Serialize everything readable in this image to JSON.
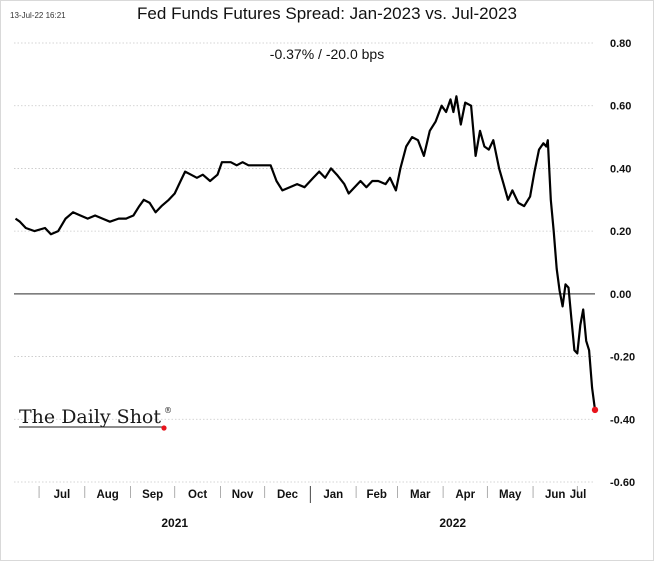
{
  "timestamp": "13-Jul-22 16:21",
  "title": "Fed Funds Futures Spread: Jan-2023 vs. Jul-2023",
  "subtitle": "-0.37%  /  -20.0 bps",
  "logo": {
    "text": "The Daily Shot",
    "mark": "®"
  },
  "colors": {
    "line": "#000000",
    "last_point": "#e8141c",
    "grid": "#c8c8c8",
    "zero_line": "#555555"
  },
  "chart_data": {
    "type": "line",
    "title": "Fed Funds Futures Spread: Jan-2023 vs. Jul-2023",
    "annotation": "-0.37%  /  -20.0 bps",
    "xlabel": "",
    "ylabel": "",
    "ylim": [
      -0.6,
      0.8
    ],
    "yticks": [
      "0.80",
      "0.60",
      "0.40",
      "0.20",
      "0.00",
      "-0.20",
      "-0.40",
      "-0.60"
    ],
    "y_axis_side": "right",
    "grid": "horizontal dotted",
    "x_range": [
      "2021-06-14",
      "2022-07-13"
    ],
    "x_month_labels": [
      "Jul",
      "Aug",
      "Sep",
      "Oct",
      "Nov",
      "Dec",
      "Jan",
      "Feb",
      "Mar",
      "Apr",
      "May",
      "Jun",
      "Jul"
    ],
    "x_year_labels": [
      "2021",
      "2022"
    ],
    "series": [
      {
        "values": [
          [
            "2021-06-15",
            0.24
          ],
          [
            "2021-06-18",
            0.23
          ],
          [
            "2021-06-22",
            0.21
          ],
          [
            "2021-06-28",
            0.2
          ],
          [
            "2021-07-05",
            0.21
          ],
          [
            "2021-07-09",
            0.19
          ],
          [
            "2021-07-14",
            0.2
          ],
          [
            "2021-07-19",
            0.24
          ],
          [
            "2021-07-24",
            0.26
          ],
          [
            "2021-07-29",
            0.25
          ],
          [
            "2021-08-03",
            0.24
          ],
          [
            "2021-08-08",
            0.25
          ],
          [
            "2021-08-13",
            0.24
          ],
          [
            "2021-08-18",
            0.23
          ],
          [
            "2021-08-24",
            0.24
          ],
          [
            "2021-08-29",
            0.24
          ],
          [
            "2021-09-03",
            0.25
          ],
          [
            "2021-09-07",
            0.28
          ],
          [
            "2021-09-10",
            0.3
          ],
          [
            "2021-09-14",
            0.29
          ],
          [
            "2021-09-18",
            0.26
          ],
          [
            "2021-09-22",
            0.28
          ],
          [
            "2021-09-27",
            0.3
          ],
          [
            "2021-10-01",
            0.32
          ],
          [
            "2021-10-05",
            0.36
          ],
          [
            "2021-10-08",
            0.39
          ],
          [
            "2021-10-12",
            0.38
          ],
          [
            "2021-10-16",
            0.37
          ],
          [
            "2021-10-20",
            0.38
          ],
          [
            "2021-10-25",
            0.36
          ],
          [
            "2021-10-30",
            0.38
          ],
          [
            "2021-11-02",
            0.42
          ],
          [
            "2021-11-08",
            0.42
          ],
          [
            "2021-11-12",
            0.41
          ],
          [
            "2021-11-16",
            0.42
          ],
          [
            "2021-11-20",
            0.41
          ],
          [
            "2021-11-26",
            0.41
          ],
          [
            "2021-12-01",
            0.41
          ],
          [
            "2021-12-05",
            0.41
          ],
          [
            "2021-12-09",
            0.36
          ],
          [
            "2021-12-13",
            0.33
          ],
          [
            "2021-12-18",
            0.34
          ],
          [
            "2021-12-23",
            0.35
          ],
          [
            "2021-12-28",
            0.34
          ],
          [
            "2022-01-03",
            0.37
          ],
          [
            "2022-01-07",
            0.39
          ],
          [
            "2022-01-11",
            0.37
          ],
          [
            "2022-01-15",
            0.4
          ],
          [
            "2022-01-19",
            0.38
          ],
          [
            "2022-01-24",
            0.35
          ],
          [
            "2022-01-27",
            0.32
          ],
          [
            "2022-01-31",
            0.34
          ],
          [
            "2022-02-04",
            0.36
          ],
          [
            "2022-02-08",
            0.34
          ],
          [
            "2022-02-12",
            0.36
          ],
          [
            "2022-02-16",
            0.36
          ],
          [
            "2022-02-21",
            0.35
          ],
          [
            "2022-02-24",
            0.37
          ],
          [
            "2022-02-28",
            0.33
          ],
          [
            "2022-03-03",
            0.4
          ],
          [
            "2022-03-07",
            0.47
          ],
          [
            "2022-03-11",
            0.5
          ],
          [
            "2022-03-15",
            0.49
          ],
          [
            "2022-03-19",
            0.44
          ],
          [
            "2022-03-23",
            0.52
          ],
          [
            "2022-03-27",
            0.55
          ],
          [
            "2022-03-31",
            0.6
          ],
          [
            "2022-04-03",
            0.58
          ],
          [
            "2022-04-06",
            0.62
          ],
          [
            "2022-04-08",
            0.58
          ],
          [
            "2022-04-10",
            0.63
          ],
          [
            "2022-04-13",
            0.54
          ],
          [
            "2022-04-16",
            0.61
          ],
          [
            "2022-04-20",
            0.6
          ],
          [
            "2022-04-23",
            0.44
          ],
          [
            "2022-04-26",
            0.52
          ],
          [
            "2022-04-29",
            0.47
          ],
          [
            "2022-05-02",
            0.46
          ],
          [
            "2022-05-05",
            0.49
          ],
          [
            "2022-05-09",
            0.4
          ],
          [
            "2022-05-12",
            0.35
          ],
          [
            "2022-05-15",
            0.3
          ],
          [
            "2022-05-18",
            0.33
          ],
          [
            "2022-05-22",
            0.29
          ],
          [
            "2022-05-26",
            0.28
          ],
          [
            "2022-05-30",
            0.31
          ],
          [
            "2022-06-02",
            0.39
          ],
          [
            "2022-06-05",
            0.46
          ],
          [
            "2022-06-08",
            0.48
          ],
          [
            "2022-06-10",
            0.47
          ],
          [
            "2022-06-11",
            0.49
          ],
          [
            "2022-06-13",
            0.3
          ],
          [
            "2022-06-15",
            0.2
          ],
          [
            "2022-06-17",
            0.08
          ],
          [
            "2022-06-19",
            0.01
          ],
          [
            "2022-06-21",
            -0.04
          ],
          [
            "2022-06-23",
            0.03
          ],
          [
            "2022-06-25",
            0.02
          ],
          [
            "2022-06-27",
            -0.08
          ],
          [
            "2022-06-29",
            -0.18
          ],
          [
            "2022-07-01",
            -0.19
          ],
          [
            "2022-07-03",
            -0.1
          ],
          [
            "2022-07-05",
            -0.05
          ],
          [
            "2022-07-07",
            -0.15
          ],
          [
            "2022-07-09",
            -0.18
          ],
          [
            "2022-07-11",
            -0.3
          ],
          [
            "2022-07-13",
            -0.37
          ]
        ]
      }
    ],
    "last_point": [
      "2022-07-13",
      -0.37
    ]
  }
}
